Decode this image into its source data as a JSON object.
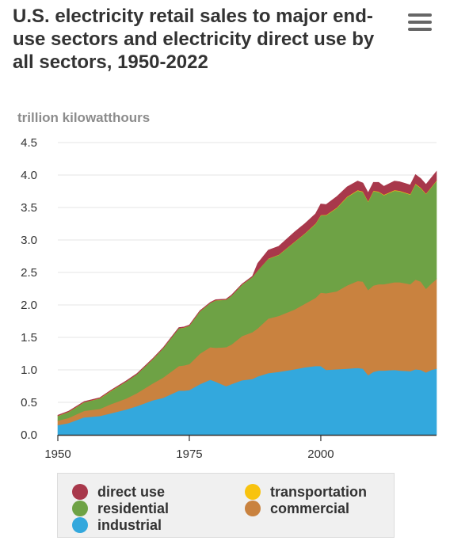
{
  "title": "U.S. electricity retail sales to major end-use sectors and electricity direct use by all sectors, 1950-2022",
  "menu_icon": "hamburger-menu-icon",
  "chart_data": {
    "type": "area",
    "stacked": true,
    "title": "U.S. electricity retail sales to major end-use sectors and electricity direct use by all sectors, 1950-2022",
    "ylabel": "trillion kilowatthours",
    "xlabel": "",
    "xlim": [
      1950,
      2022
    ],
    "ylim": [
      0,
      4.5
    ],
    "xticks": [
      "1950",
      "1975",
      "2000"
    ],
    "yticks": [
      "0.0",
      "0.5",
      "1.0",
      "1.5",
      "2.0",
      "2.5",
      "3.0",
      "3.5",
      "4.0",
      "4.5"
    ],
    "grid": "horizontal",
    "legend_position": "bottom",
    "x": [
      1950,
      1952,
      1955,
      1958,
      1960,
      1963,
      1965,
      1968,
      1970,
      1973,
      1974,
      1975,
      1977,
      1979,
      1980,
      1982,
      1983,
      1985,
      1987,
      1988,
      1990,
      1992,
      1995,
      1997,
      1999,
      2000,
      2001,
      2003,
      2005,
      2007,
      2008,
      2009,
      2010,
      2011,
      2012,
      2014,
      2015,
      2017,
      2018,
      2019,
      2020,
      2021,
      2022
    ],
    "series": [
      {
        "name": "industrial",
        "color": "#33a8dd",
        "values": [
          0.15,
          0.18,
          0.27,
          0.29,
          0.33,
          0.39,
          0.44,
          0.53,
          0.57,
          0.68,
          0.68,
          0.69,
          0.78,
          0.85,
          0.82,
          0.75,
          0.78,
          0.84,
          0.86,
          0.9,
          0.95,
          0.97,
          1.01,
          1.04,
          1.06,
          1.06,
          1.0,
          1.01,
          1.02,
          1.03,
          1.02,
          0.92,
          0.97,
          0.99,
          0.99,
          1.0,
          0.99,
          0.98,
          1.01,
          1.0,
          0.96,
          1.0,
          1.02
        ]
      },
      {
        "name": "commercial",
        "color": "#c9823f",
        "values": [
          0.07,
          0.08,
          0.1,
          0.11,
          0.14,
          0.17,
          0.2,
          0.26,
          0.31,
          0.38,
          0.39,
          0.4,
          0.47,
          0.5,
          0.52,
          0.6,
          0.61,
          0.68,
          0.72,
          0.74,
          0.84,
          0.86,
          0.92,
          0.98,
          1.05,
          1.13,
          1.18,
          1.2,
          1.28,
          1.34,
          1.34,
          1.31,
          1.33,
          1.33,
          1.33,
          1.35,
          1.36,
          1.34,
          1.38,
          1.36,
          1.29,
          1.33,
          1.38
        ]
      },
      {
        "name": "residential",
        "color": "#6ea245",
        "values": [
          0.07,
          0.09,
          0.13,
          0.16,
          0.2,
          0.26,
          0.29,
          0.37,
          0.45,
          0.58,
          0.58,
          0.59,
          0.65,
          0.68,
          0.73,
          0.73,
          0.75,
          0.79,
          0.85,
          0.89,
          0.92,
          0.94,
          1.04,
          1.08,
          1.14,
          1.19,
          1.2,
          1.28,
          1.36,
          1.39,
          1.38,
          1.36,
          1.45,
          1.42,
          1.37,
          1.41,
          1.4,
          1.38,
          1.47,
          1.44,
          1.46,
          1.48,
          1.51
        ]
      },
      {
        "name": "transportation",
        "color": "#f8c30f",
        "values": [
          0.003,
          0.003,
          0.003,
          0.003,
          0.003,
          0.002,
          0.002,
          0.002,
          0.002,
          0.002,
          0.002,
          0.002,
          0.002,
          0.002,
          0.002,
          0.002,
          0.002,
          0.002,
          0.002,
          0.002,
          0.004,
          0.004,
          0.005,
          0.005,
          0.005,
          0.005,
          0.006,
          0.007,
          0.008,
          0.008,
          0.008,
          0.008,
          0.008,
          0.008,
          0.007,
          0.008,
          0.008,
          0.007,
          0.008,
          0.008,
          0.006,
          0.007,
          0.007
        ]
      },
      {
        "name": "direct use",
        "color": "#a8384b",
        "values": [
          0.01,
          0.01,
          0.01,
          0.01,
          0.01,
          0.01,
          0.01,
          0.01,
          0.01,
          0.01,
          0.01,
          0.01,
          0.01,
          0.01,
          0.01,
          0.01,
          0.01,
          0.01,
          0.01,
          0.11,
          0.13,
          0.13,
          0.15,
          0.15,
          0.15,
          0.17,
          0.16,
          0.17,
          0.15,
          0.14,
          0.13,
          0.13,
          0.13,
          0.14,
          0.13,
          0.14,
          0.14,
          0.14,
          0.14,
          0.14,
          0.14,
          0.14,
          0.14
        ]
      }
    ]
  },
  "legend": [
    {
      "label": "direct use",
      "color": "#a8384b"
    },
    {
      "label": "transportation",
      "color": "#f8c30f"
    },
    {
      "label": "residential",
      "color": "#6ea245"
    },
    {
      "label": "commercial",
      "color": "#c9823f"
    },
    {
      "label": "industrial",
      "color": "#33a8dd"
    }
  ]
}
